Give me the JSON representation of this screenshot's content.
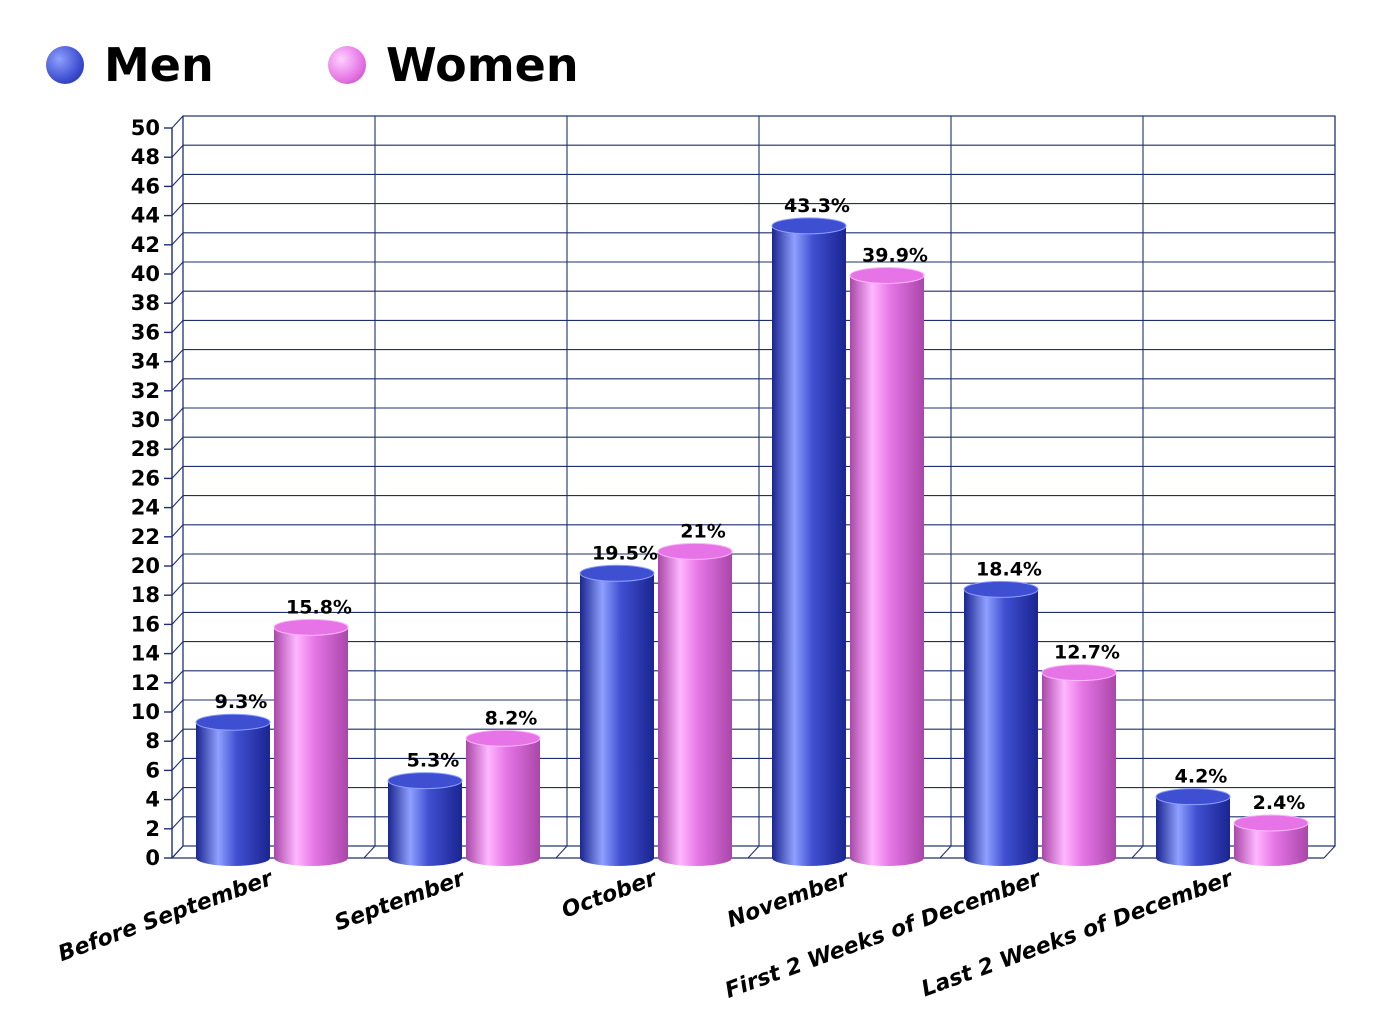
{
  "colors": {
    "men_base": "#3f4fd1",
    "men_light": "#8ea0ff",
    "men_dark": "#1a2590",
    "women_base": "#e674e6",
    "women_light": "#ffb6ff",
    "women_dark": "#a947a9",
    "grid": "#1f2f6e"
  },
  "chart_data": {
    "type": "bar",
    "categories": [
      "Before September",
      "September",
      "October",
      "November",
      "First 2 Weeks of December",
      "Last 2 Weeks of December"
    ],
    "series": [
      {
        "name": "Men",
        "values": [
          9.3,
          5.3,
          19.5,
          43.3,
          18.4,
          4.2
        ],
        "labels": [
          "9.3%",
          "5.3%",
          "19.5%",
          "43.3%",
          "18.4%",
          "4.2%"
        ]
      },
      {
        "name": "Women",
        "values": [
          15.8,
          8.2,
          21,
          39.9,
          12.7,
          2.4
        ],
        "labels": [
          "15.8%",
          "8.2%",
          "21%",
          "39.9%",
          "12.7%",
          "2.4%"
        ]
      }
    ],
    "yticks": [
      "0",
      "2",
      "4",
      "6",
      "8",
      "10",
      "12",
      "14",
      "16",
      "18",
      "20",
      "22",
      "24",
      "26",
      "28",
      "30",
      "32",
      "34",
      "36",
      "38",
      "40",
      "42",
      "44",
      "46",
      "48",
      "50"
    ],
    "ylim": [
      0,
      50
    ],
    "grid": true,
    "legend_position": "top-left"
  }
}
